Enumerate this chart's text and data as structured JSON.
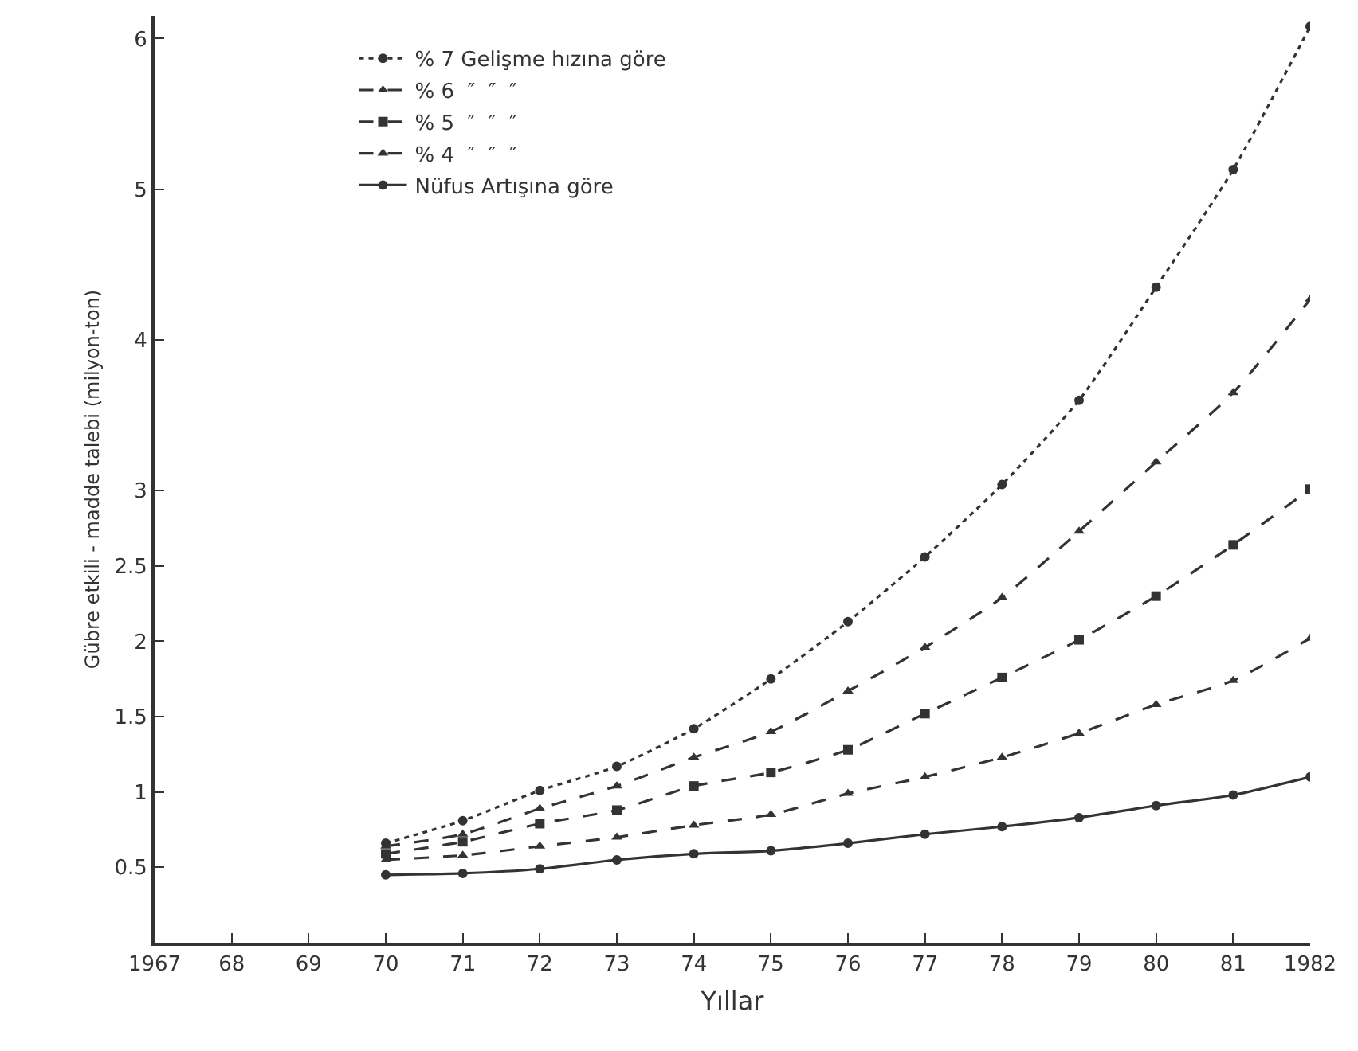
{
  "chart_data": {
    "type": "line",
    "xlabel": "Yıllar",
    "ylabel": "Gübre etkili - madde talebi (milyon-ton)",
    "x": [
      1970,
      1971,
      1972,
      1973,
      1974,
      1975,
      1976,
      1977,
      1978,
      1979,
      1980,
      1981,
      1982
    ],
    "series": [
      {
        "name": "% 7 Gelişme hızına göre",
        "color": "#333333",
        "marker": "circle",
        "line_style": "dotted",
        "values": [
          0.66,
          0.81,
          1.01,
          1.17,
          1.42,
          1.75,
          2.13,
          2.56,
          3.04,
          3.6,
          4.35,
          5.13,
          6.08
        ]
      },
      {
        "name": "% 6  ″  ″  ″",
        "color": "#333333",
        "marker": "triangle",
        "line_style": "dashed",
        "values": [
          0.64,
          0.72,
          0.89,
          1.04,
          1.23,
          1.4,
          1.67,
          1.96,
          2.29,
          2.73,
          3.19,
          3.65,
          4.27
        ]
      },
      {
        "name": "% 5  ″  ″  ″",
        "color": "#333333",
        "marker": "square",
        "line_style": "dashed",
        "values": [
          0.59,
          0.67,
          0.79,
          0.88,
          1.04,
          1.13,
          1.28,
          1.52,
          1.76,
          2.01,
          2.3,
          2.64,
          3.01
        ]
      },
      {
        "name": "% 4  ″  ″  ″",
        "color": "#333333",
        "marker": "triangle",
        "line_style": "dashed",
        "values": [
          0.55,
          0.58,
          0.64,
          0.7,
          0.78,
          0.85,
          0.99,
          1.1,
          1.23,
          1.39,
          1.58,
          1.74,
          2.02
        ]
      },
      {
        "name": "Nüfus Artışına göre",
        "color": "#333333",
        "marker": "circle",
        "line_style": "solid",
        "values": [
          0.45,
          0.46,
          0.49,
          0.55,
          0.59,
          0.61,
          0.66,
          0.72,
          0.77,
          0.83,
          0.91,
          0.98,
          1.1
        ]
      }
    ],
    "xlim": [
      1967,
      1982
    ],
    "xticks": [
      {
        "value": 1967,
        "label": "1967"
      },
      {
        "value": 1968,
        "label": "68"
      },
      {
        "value": 1969,
        "label": "69"
      },
      {
        "value": 1970,
        "label": "70"
      },
      {
        "value": 1971,
        "label": "71"
      },
      {
        "value": 1972,
        "label": "72"
      },
      {
        "value": 1973,
        "label": "73"
      },
      {
        "value": 1974,
        "label": "74"
      },
      {
        "value": 1975,
        "label": "75"
      },
      {
        "value": 1976,
        "label": "76"
      },
      {
        "value": 1977,
        "label": "77"
      },
      {
        "value": 1978,
        "label": "78"
      },
      {
        "value": 1979,
        "label": "79"
      },
      {
        "value": 1980,
        "label": "80"
      },
      {
        "value": 1981,
        "label": "81"
      },
      {
        "value": 1982,
        "label": "1982"
      }
    ],
    "ylim": [
      0,
      6.15
    ],
    "yticks": [
      0.5,
      1,
      1.5,
      2,
      2.5,
      3,
      4,
      5,
      6
    ],
    "grid": false,
    "legend": "top left"
  }
}
